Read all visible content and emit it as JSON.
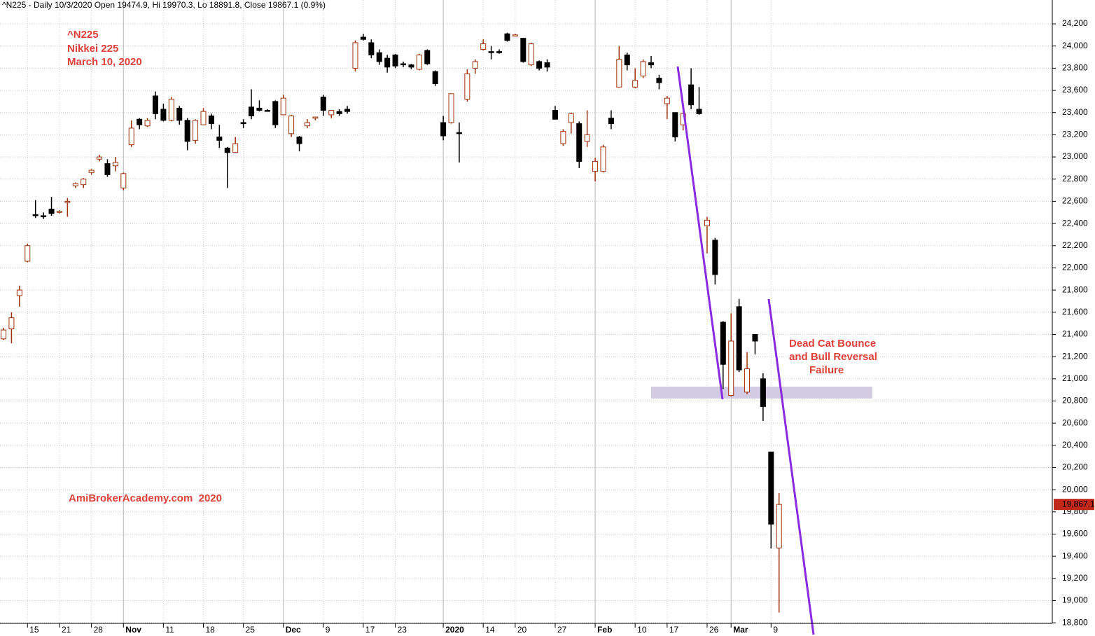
{
  "chart_data": {
    "type": "candlestick",
    "title": "^N225 - Daily 10/3/2020 Open 19474.9, Hi 19970.3, Lo 18891.8, Close 19867.1 (0.9%)",
    "annotations": [
      "^N225",
      "Nikkei 225",
      "March 10, 2020",
      "AmiBrokerAcademy.com  2020",
      "Dead Cat Bounce",
      "and Bull Reversal",
      "Failure"
    ],
    "categories": [
      null,
      null,
      null,
      "15",
      null,
      null,
      null,
      "21",
      null,
      null,
      null,
      "28",
      null,
      null,
      null,
      "Nov",
      null,
      null,
      null,
      null,
      "11",
      null,
      null,
      null,
      null,
      "18",
      null,
      null,
      null,
      null,
      "25",
      null,
      null,
      null,
      null,
      "Dec",
      null,
      null,
      null,
      null,
      "9",
      null,
      null,
      null,
      null,
      "17",
      null,
      null,
      null,
      "23",
      null,
      null,
      null,
      null,
      null,
      "2020",
      null,
      null,
      null,
      null,
      "14",
      null,
      null,
      null,
      "20",
      null,
      null,
      null,
      null,
      "27",
      null,
      null,
      null,
      null,
      "Feb",
      null,
      null,
      null,
      null,
      "10",
      null,
      null,
      null,
      "17",
      null,
      null,
      null,
      null,
      "26",
      null,
      null,
      "Mar",
      null,
      null,
      null,
      null,
      "9",
      null
    ],
    "open": [
      21360,
      21450,
      21750,
      22060,
      22480,
      22470,
      22530,
      22500,
      22590,
      22740,
      22750,
      22860,
      22980,
      22940,
      22920,
      22720,
      23110,
      23340,
      23280,
      23550,
      23430,
      23330,
      23440,
      23330,
      23150,
      23290,
      23370,
      23180,
      23080,
      23040,
      23310,
      23450,
      23440,
      23420,
      23500,
      23380,
      23210,
      23180,
      23280,
      23350,
      23540,
      23380,
      23410,
      23430,
      23800,
      24080,
      24030,
      23940,
      23890,
      23920,
      23840,
      23830,
      23790,
      23960,
      23770,
      23310,
      23310,
      23220,
      23520,
      23800,
      23970,
      23950,
      23950,
      24110,
      24090,
      24070,
      23830,
      23860,
      23850,
      23420,
      23120,
      23310,
      23300,
      23140,
      22870,
      22870,
      23350,
      23630,
      23920,
      23630,
      23730,
      23850,
      23710,
      23480,
      23400,
      23290,
      23650,
      23430,
      22380,
      22250,
      21510,
      20850,
      21650,
      20880,
      21400,
      21000,
      20340,
      19474.9
    ],
    "high": [
      21460,
      21600,
      21840,
      22220,
      22610,
      22500,
      22640,
      22520,
      22630,
      22770,
      22810,
      22890,
      23020,
      22980,
      23000,
      22860,
      23330,
      23350,
      23350,
      23590,
      23480,
      23540,
      23460,
      23350,
      23340,
      23440,
      23390,
      23290,
      23090,
      23180,
      23340,
      23610,
      23510,
      23430,
      23510,
      23560,
      23380,
      23190,
      23340,
      23360,
      23560,
      23420,
      23430,
      23460,
      24050,
      24110,
      24060,
      23970,
      23920,
      23930,
      23860,
      23840,
      23930,
      23970,
      23780,
      23370,
      23570,
      23310,
      23790,
      23880,
      24060,
      24000,
      23970,
      24120,
      24110,
      24070,
      24030,
      23870,
      23880,
      23460,
      23250,
      23400,
      23320,
      23420,
      22990,
      23110,
      23420,
      24000,
      23940,
      23800,
      23880,
      23910,
      23740,
      23550,
      23400,
      23410,
      23800,
      23630,
      22460,
      22270,
      21520,
      21590,
      21720,
      21240,
      21400,
      21050,
      20340,
      19970.3
    ],
    "low": [
      21350,
      21320,
      21650,
      22050,
      22450,
      22440,
      22470,
      22490,
      22460,
      22720,
      22720,
      22840,
      22960,
      22820,
      22870,
      22700,
      23090,
      23250,
      23270,
      23340,
      23320,
      23320,
      23290,
      23060,
      23120,
      23290,
      23250,
      23080,
      22720,
      23040,
      23260,
      23340,
      23410,
      23410,
      23260,
      23380,
      23180,
      23050,
      23260,
      23330,
      23370,
      23350,
      23370,
      23390,
      23770,
      24050,
      23890,
      23830,
      23760,
      23800,
      23810,
      23790,
      23780,
      23830,
      23640,
      23150,
      23300,
      22950,
      23500,
      23750,
      23960,
      23880,
      23930,
      24040,
      24090,
      23850,
      23820,
      23780,
      23770,
      23340,
      23100,
      23210,
      22900,
      23090,
      22780,
      22860,
      23250,
      23630,
      23780,
      23620,
      23710,
      23800,
      23610,
      23340,
      23140,
      23240,
      23430,
      23380,
      22130,
      21850,
      20910,
      20840,
      21060,
      20860,
      21220,
      20620,
      19470,
      18891.8
    ],
    "close": [
      21440,
      21550,
      21800,
      22200,
      22470,
      22460,
      22490,
      22510,
      22600,
      22760,
      22800,
      22880,
      23000,
      22840,
      22950,
      22850,
      23260,
      23290,
      23330,
      23390,
      23330,
      23520,
      23330,
      23140,
      23330,
      23410,
      23300,
      23150,
      23040,
      23120,
      23300,
      23370,
      23420,
      23420,
      23290,
      23530,
      23370,
      23120,
      23310,
      23360,
      23420,
      23420,
      23390,
      23410,
      24030,
      24060,
      23920,
      23860,
      23810,
      23820,
      23830,
      23810,
      23920,
      23840,
      23660,
      23190,
      23570,
      23210,
      23750,
      23860,
      24020,
      23940,
      23940,
      24050,
      24100,
      23860,
      24020,
      23800,
      23810,
      23340,
      23230,
      23390,
      22960,
      23200,
      22960,
      23090,
      23300,
      23880,
      23830,
      23690,
      23860,
      23830,
      23670,
      23530,
      23180,
      23390,
      23470,
      23390,
      22430,
      21940,
      21130,
      21340,
      21080,
      21090,
      21340,
      20750,
      19690,
      19867.1
    ],
    "up_color": "#a0300a",
    "down_color": "#000000",
    "last_price": {
      "value": 19867.1,
      "label": "19,867.1"
    },
    "last_price_color": "#c0281a",
    "ylim": [
      18681,
      24415
    ],
    "yticks": [
      {
        "value": 18800,
        "label": "18,800"
      },
      {
        "value": 19000,
        "label": "19,000"
      },
      {
        "value": 19200,
        "label": "19,200"
      },
      {
        "value": 19400,
        "label": "19,400"
      },
      {
        "value": 19600,
        "label": "19,600"
      },
      {
        "value": 19800,
        "label": "19,800"
      },
      {
        "value": 20000,
        "label": "20,000"
      },
      {
        "value": 20200,
        "label": "20,200"
      },
      {
        "value": 20400,
        "label": "20,400"
      },
      {
        "value": 20600,
        "label": "20,600"
      },
      {
        "value": 20800,
        "label": "20,800"
      },
      {
        "value": 21000,
        "label": "21,000"
      },
      {
        "value": 21200,
        "label": "21,200"
      },
      {
        "value": 21400,
        "label": "21,400"
      },
      {
        "value": 21600,
        "label": "21,600"
      },
      {
        "value": 21800,
        "label": "21,800"
      },
      {
        "value": 22000,
        "label": "22,000"
      },
      {
        "value": 22200,
        "label": "22,200"
      },
      {
        "value": 22400,
        "label": "22,400"
      },
      {
        "value": 22600,
        "label": "22,600"
      },
      {
        "value": 22800,
        "label": "22,800"
      },
      {
        "value": 23000,
        "label": "23,000"
      },
      {
        "value": 23200,
        "label": "23,200"
      },
      {
        "value": 23400,
        "label": "23,400"
      },
      {
        "value": 23600,
        "label": "23,600"
      },
      {
        "value": 23800,
        "label": "23,800"
      },
      {
        "value": 24000,
        "label": "24,000"
      },
      {
        "value": 24200,
        "label": "24,200"
      }
    ],
    "grid": true
  }
}
